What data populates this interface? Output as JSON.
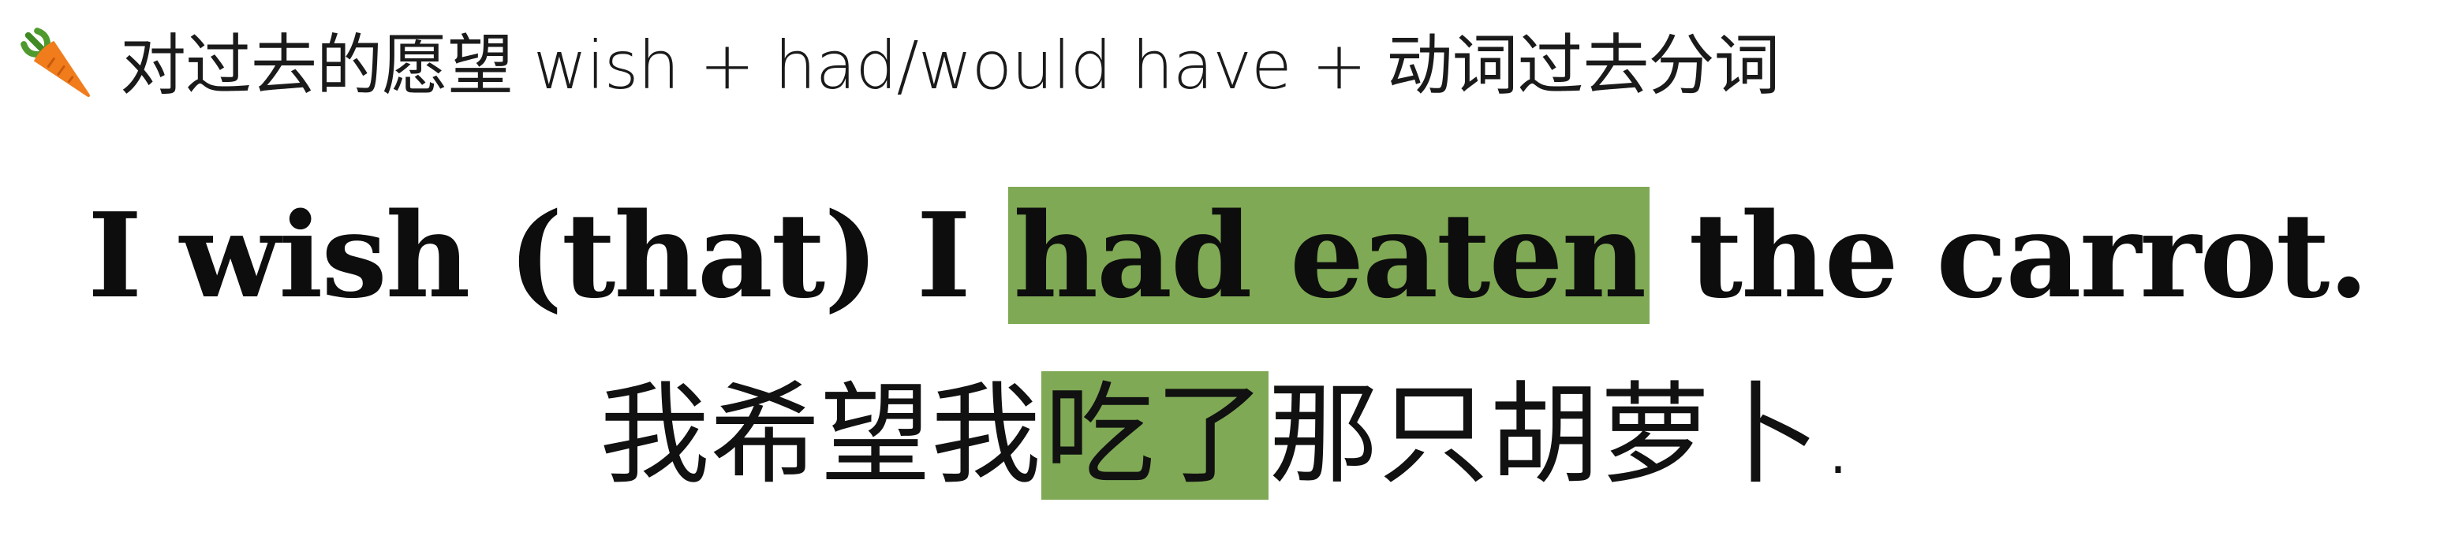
{
  "heading": {
    "icon": "carrot-icon",
    "text": "对过去的愿望 wish + had/would have + 动词过去分词"
  },
  "example_en": {
    "before": "I wish (that) I",
    "highlight": "had eaten",
    "after": "the carrot."
  },
  "example_zh": {
    "before": "我希望我",
    "highlight": "吃了",
    "after": "那只胡萝卜."
  },
  "colors": {
    "highlight": "#7fa954",
    "carrot_body": "#f07c1c",
    "carrot_leaves": "#4f9a2e"
  }
}
